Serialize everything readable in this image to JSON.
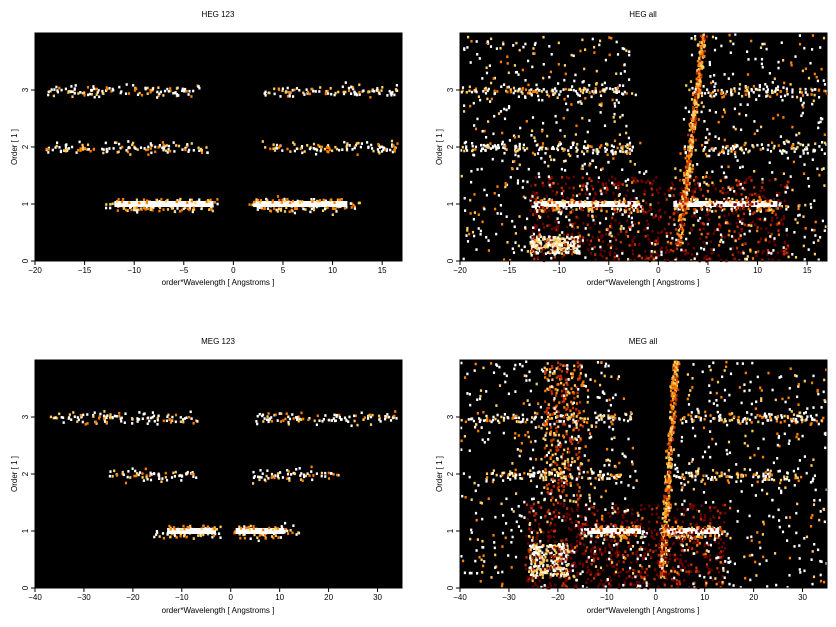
{
  "chart_data": [
    {
      "type": "heatmap",
      "title": "HEG 123",
      "xlabel": "order*Wavelength [ Angstroms ]",
      "ylabel": "Order [ 1 ]",
      "xlim": [
        -20,
        17
      ],
      "ylim": [
        0,
        4
      ],
      "xticks": [
        -20,
        -15,
        -10,
        -5,
        0,
        5,
        10,
        15
      ],
      "yticks": [
        0,
        1,
        2,
        3
      ],
      "background": "#000000",
      "colormap": [
        "#000000",
        "#6b0000",
        "#c43000",
        "#ff8000",
        "#ffd060",
        "#ffffff"
      ],
      "bands": [
        {
          "order": 1,
          "segments": [
            [
              -13.0,
              -1.5
            ],
            [
              1.5,
              13.0
            ]
          ],
          "core": [
            [
              -12.0,
              -2.0
            ],
            [
              2.0,
              11.5
            ]
          ]
        },
        {
          "order": 2,
          "segments": [
            [
              -19.0,
              -2.5
            ],
            [
              2.5,
              16.5
            ]
          ],
          "core": []
        },
        {
          "order": 3,
          "segments": [
            [
              -19.0,
              -3.5
            ],
            [
              3.0,
              16.5
            ]
          ],
          "core": []
        }
      ],
      "contamination": []
    },
    {
      "type": "heatmap",
      "title": "HEG all",
      "xlabel": "order*Wavelength [ Angstroms ]",
      "ylabel": "Order [ 1 ]",
      "xlim": [
        -20,
        17
      ],
      "ylim": [
        0,
        4
      ],
      "xticks": [
        -20,
        -15,
        -10,
        -5,
        0,
        5,
        10,
        15
      ],
      "yticks": [
        0,
        1,
        2,
        3
      ],
      "background": "#000000",
      "colormap": [
        "#000000",
        "#6b0000",
        "#c43000",
        "#ff8000",
        "#ffd060",
        "#ffffff"
      ],
      "bands": [
        {
          "order": 1,
          "segments": [
            [
              -13.0,
              -1.5
            ],
            [
              1.5,
              13.0
            ]
          ],
          "core": [
            [
              -12.5,
              -2.0
            ],
            [
              1.5,
              12.0
            ]
          ]
        },
        {
          "order": 2,
          "segments": [
            [
              -20.0,
              -2.5
            ],
            [
              2.5,
              17.0
            ]
          ],
          "core": []
        },
        {
          "order": 3,
          "segments": [
            [
              -20.0,
              -3.5
            ],
            [
              3.0,
              17.0
            ]
          ],
          "core": []
        }
      ],
      "contamination": [
        {
          "kind": "cone",
          "apex_x": 0.0,
          "apex_y": 0.0,
          "top_y": 4.0,
          "left_x_top": -3.0,
          "right_x_top": 4.0
        },
        {
          "kind": "streak",
          "x_bottom": 2.0,
          "x_top": 4.5,
          "y_bottom": 0.3,
          "y_top": 4.0
        },
        {
          "kind": "blob",
          "x": [
            -13.0,
            -8.0
          ],
          "y": [
            0.15,
            0.45
          ]
        },
        {
          "kind": "diffuse",
          "x": [
            -13.0,
            13.0
          ],
          "y": [
            0.0,
            1.5
          ]
        },
        {
          "kind": "scatter",
          "x": [
            -20.0,
            17.0
          ],
          "y": [
            0.0,
            4.0
          ]
        }
      ]
    },
    {
      "type": "heatmap",
      "title": "MEG 123",
      "xlabel": "order*Wavelength [ Angstroms ]",
      "ylabel": "Order [ 1 ]",
      "xlim": [
        -40,
        35
      ],
      "ylim": [
        0,
        4
      ],
      "xticks": [
        -40,
        -30,
        -20,
        -10,
        0,
        10,
        20,
        30
      ],
      "yticks": [
        0,
        1,
        2,
        3
      ],
      "background": "#000000",
      "colormap": [
        "#000000",
        "#6b0000",
        "#c43000",
        "#ff8000",
        "#ffd060",
        "#ffffff"
      ],
      "bands": [
        {
          "order": 1,
          "segments": [
            [
              -16.0,
              -2.0
            ],
            [
              0.5,
              14.5
            ]
          ],
          "core": [
            [
              -13.0,
              -3.0
            ],
            [
              1.0,
              11.0
            ]
          ]
        },
        {
          "order": 2,
          "segments": [
            [
              -25.0,
              -7.0
            ],
            [
              4.0,
              22.0
            ]
          ],
          "core": []
        },
        {
          "order": 3,
          "segments": [
            [
              -37.0,
              -7.0
            ],
            [
              5.0,
              34.0
            ]
          ],
          "core": []
        }
      ],
      "contamination": []
    },
    {
      "type": "heatmap",
      "title": "MEG all",
      "xlabel": "order*Wavelength [ Angstroms ]",
      "ylabel": "Order [ 1 ]",
      "xlim": [
        -40,
        35
      ],
      "ylim": [
        0,
        4
      ],
      "xticks": [
        -40,
        -30,
        -20,
        -10,
        0,
        10,
        20,
        30
      ],
      "yticks": [
        0,
        1,
        2,
        3
      ],
      "background": "#000000",
      "colormap": [
        "#000000",
        "#6b0000",
        "#c43000",
        "#ff8000",
        "#ffd060",
        "#ffffff"
      ],
      "bands": [
        {
          "order": 1,
          "segments": [
            [
              -16.0,
              -2.0
            ],
            [
              0.5,
              14.5
            ]
          ],
          "core": [
            [
              -14.0,
              -3.0
            ],
            [
              1.0,
              13.0
            ]
          ]
        },
        {
          "order": 2,
          "segments": [
            [
              -35.0,
              -7.0
            ],
            [
              4.0,
              30.0
            ]
          ],
          "core": []
        },
        {
          "order": 3,
          "segments": [
            [
              -38.0,
              -5.0
            ],
            [
              5.0,
              34.0
            ]
          ],
          "core": []
        }
      ],
      "contamination": [
        {
          "kind": "cone",
          "apex_x": 0.0,
          "apex_y": 0.0,
          "top_y": 4.0,
          "left_x_top": -5.0,
          "right_x_top": 3.0
        },
        {
          "kind": "streak",
          "x_bottom": 1.0,
          "x_top": 4.0,
          "y_bottom": 0.2,
          "y_top": 4.0
        },
        {
          "kind": "blob",
          "x": [
            -26.0,
            -18.0
          ],
          "y": [
            0.2,
            0.8
          ]
        },
        {
          "kind": "diffuse",
          "x": [
            -27.0,
            14.0
          ],
          "y": [
            0.0,
            1.5
          ]
        },
        {
          "kind": "wedge",
          "x": [
            -23.0,
            -15.0
          ],
          "y": [
            1.5,
            4.0
          ]
        },
        {
          "kind": "scatter",
          "x": [
            -40.0,
            35.0
          ],
          "y": [
            0.0,
            4.0
          ]
        }
      ]
    }
  ]
}
